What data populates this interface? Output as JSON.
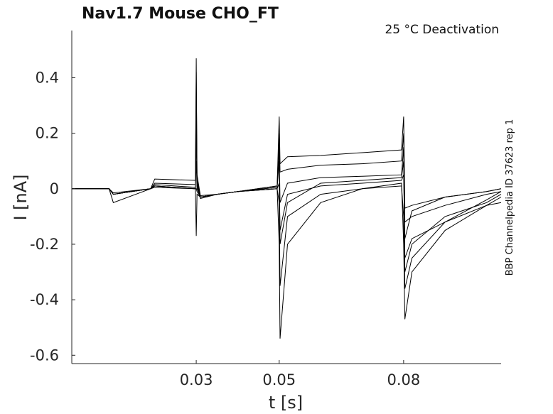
{
  "chart_data": {
    "type": "line",
    "title": "Nav1.7  Mouse  CHO_FT",
    "subtitle": "25 °C  Deactivation",
    "xlabel": "t [s]",
    "ylabel": "I [nA]",
    "side_note": "BBP Channelpedia ID 37623 rep 1",
    "xlim": [
      0.0,
      0.1035
    ],
    "ylim": [
      -0.63,
      0.57
    ],
    "x_ticks": [
      {
        "value": 0.03,
        "label": "0.03"
      },
      {
        "value": 0.05,
        "label": "0.05"
      },
      {
        "value": 0.08,
        "label": "0.08"
      }
    ],
    "y_ticks": [
      {
        "value": 0.4,
        "label": "0.4"
      },
      {
        "value": 0.2,
        "label": "0.2"
      },
      {
        "value": 0,
        "label": "0"
      },
      {
        "value": -0.2,
        "label": "-0.2"
      },
      {
        "value": -0.4,
        "label": "-0.4"
      },
      {
        "value": -0.6,
        "label": "-0.6"
      }
    ],
    "grid": false,
    "legend": "none",
    "color": "#000000",
    "series": [
      {
        "x": [
          0,
          0.009,
          0.01,
          0.019,
          0.02,
          0.0298,
          0.03,
          0.0302,
          0.031,
          0.035,
          0.04,
          0.0495,
          0.05,
          0.0502,
          0.052,
          0.06,
          0.07,
          0.0795,
          0.08,
          0.0803,
          0.082,
          0.09,
          0.1,
          0.1035
        ],
        "y": [
          0,
          0.0,
          -0.02,
          0.0,
          0.035,
          0.03,
          0.47,
          0.05,
          -0.025,
          -0.02,
          -0.01,
          0.01,
          0.26,
          0.09,
          0.115,
          0.12,
          0.13,
          0.14,
          0.26,
          -0.07,
          -0.06,
          -0.03,
          -0.01,
          0.0
        ]
      },
      {
        "x": [
          0,
          0.009,
          0.01,
          0.019,
          0.02,
          0.0298,
          0.03,
          0.0302,
          0.031,
          0.035,
          0.04,
          0.0495,
          0.05,
          0.0502,
          0.052,
          0.06,
          0.07,
          0.0795,
          0.08,
          0.0803,
          0.082,
          0.09,
          0.1,
          0.1035
        ],
        "y": [
          0,
          0.0,
          -0.015,
          0.0,
          0.02,
          0.015,
          0.42,
          0.03,
          -0.03,
          -0.02,
          -0.01,
          0.01,
          0.2,
          0.06,
          0.07,
          0.085,
          0.09,
          0.1,
          0.2,
          -0.12,
          -0.1,
          -0.06,
          -0.02,
          -0.01
        ]
      },
      {
        "x": [
          0,
          0.009,
          0.01,
          0.019,
          0.02,
          0.0298,
          0.03,
          0.0302,
          0.031,
          0.035,
          0.04,
          0.0495,
          0.05,
          0.0502,
          0.052,
          0.06,
          0.07,
          0.0795,
          0.08,
          0.0803,
          0.082,
          0.09,
          0.1,
          0.1035
        ],
        "y": [
          0,
          0.0,
          -0.05,
          0.0,
          0.01,
          0.0,
          0.3,
          0.02,
          -0.03,
          -0.02,
          -0.01,
          0.005,
          0.15,
          -0.05,
          0.02,
          0.04,
          0.045,
          0.05,
          0.15,
          -0.25,
          -0.18,
          -0.12,
          -0.06,
          -0.05
        ]
      },
      {
        "x": [
          0,
          0.009,
          0.01,
          0.019,
          0.02,
          0.0298,
          0.03,
          0.0302,
          0.031,
          0.035,
          0.04,
          0.0495,
          0.05,
          0.0502,
          0.052,
          0.06,
          0.07,
          0.0795,
          0.08,
          0.0803,
          0.082,
          0.09,
          0.1,
          0.1035
        ],
        "y": [
          0,
          0.0,
          -0.02,
          0.0,
          0.01,
          0.0,
          0.2,
          0.01,
          -0.035,
          -0.02,
          -0.01,
          0.005,
          0.1,
          -0.2,
          -0.05,
          0.02,
          0.03,
          0.04,
          0.1,
          -0.3,
          -0.2,
          -0.1,
          -0.05,
          -0.02
        ]
      },
      {
        "x": [
          0,
          0.009,
          0.01,
          0.019,
          0.02,
          0.0298,
          0.03,
          0.0302,
          0.031,
          0.035,
          0.04,
          0.0495,
          0.05,
          0.0502,
          0.052,
          0.06,
          0.07,
          0.0795,
          0.08,
          0.0803,
          0.082,
          0.09,
          0.1,
          0.1035
        ],
        "y": [
          0,
          0.0,
          -0.02,
          0.0,
          0.015,
          0.005,
          0.1,
          0.0,
          -0.03,
          -0.02,
          -0.01,
          0.0,
          -0.05,
          -0.35,
          -0.1,
          -0.02,
          0.0,
          0.01,
          -0.1,
          -0.36,
          -0.25,
          -0.12,
          -0.04,
          -0.01
        ]
      },
      {
        "x": [
          0,
          0.009,
          0.01,
          0.019,
          0.02,
          0.0298,
          0.03,
          0.0302,
          0.031,
          0.035,
          0.04,
          0.0495,
          0.05,
          0.0502,
          0.052,
          0.06,
          0.07,
          0.0795,
          0.08,
          0.0803,
          0.082,
          0.09,
          0.1,
          0.1035
        ],
        "y": [
          0,
          0.0,
          -0.02,
          0.0,
          0.01,
          0.0,
          -0.17,
          -0.02,
          -0.03,
          -0.02,
          -0.01,
          0.0,
          -0.2,
          -0.54,
          -0.2,
          -0.05,
          0.0,
          0.02,
          -0.2,
          -0.47,
          -0.3,
          -0.15,
          -0.06,
          -0.03
        ]
      },
      {
        "x": [
          0,
          0.009,
          0.01,
          0.019,
          0.02,
          0.0298,
          0.03,
          0.0302,
          0.031,
          0.035,
          0.04,
          0.0495,
          0.05,
          0.0502,
          0.052,
          0.06,
          0.07,
          0.0795,
          0.08,
          0.0803,
          0.082,
          0.09,
          0.1,
          0.1035
        ],
        "y": [
          0,
          0.0,
          -0.02,
          0.0,
          0.005,
          0.0,
          0.0,
          -0.01,
          -0.03,
          -0.02,
          -0.01,
          0.0,
          0.02,
          -0.15,
          -0.02,
          0.01,
          0.02,
          0.03,
          0.05,
          -0.18,
          -0.08,
          -0.03,
          -0.01,
          0.0
        ]
      }
    ]
  }
}
